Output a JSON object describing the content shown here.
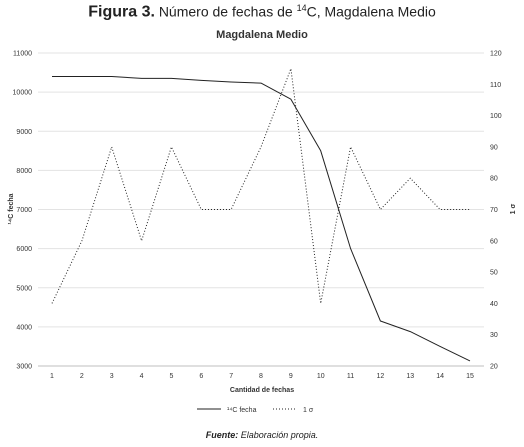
{
  "figure": {
    "label": "Figura 3.",
    "title_pre": "Número de fechas de ",
    "title_sup": "14",
    "title_post": "C, Magdalena Medio"
  },
  "source": {
    "label": "Fuente:",
    "text": "Elaboración propia."
  },
  "chart_data": {
    "type": "line",
    "title": "Magdalena Medio",
    "xlabel": "Cantidad de fechas",
    "ylabel_left": "¹⁴C fecha",
    "ylabel_right": "1 σ",
    "x": [
      1,
      2,
      3,
      4,
      5,
      6,
      7,
      8,
      9,
      10,
      11,
      12,
      13,
      14,
      15
    ],
    "ylim_left": [
      3000,
      11000
    ],
    "yticks_left": [
      3000,
      4000,
      5000,
      6000,
      7000,
      8000,
      9000,
      10000,
      11000
    ],
    "ylim_right": [
      20,
      120
    ],
    "yticks_right": [
      20,
      30,
      40,
      50,
      60,
      70,
      80,
      90,
      100,
      110,
      120
    ],
    "grid": "horizontal",
    "legend_position": "bottom",
    "series": [
      {
        "name": "¹⁴C fecha",
        "axis": "left",
        "style": "solid",
        "values": [
          10400,
          10400,
          10400,
          10350,
          10350,
          10300,
          10260,
          10230,
          9820,
          8500,
          6000,
          4150,
          3880,
          3500,
          3130
        ]
      },
      {
        "name": "1 σ",
        "axis": "right",
        "style": "dotted",
        "values": [
          40,
          60,
          90,
          60,
          90,
          70,
          70,
          90,
          115,
          40,
          90,
          70,
          80,
          70,
          70
        ]
      }
    ]
  }
}
